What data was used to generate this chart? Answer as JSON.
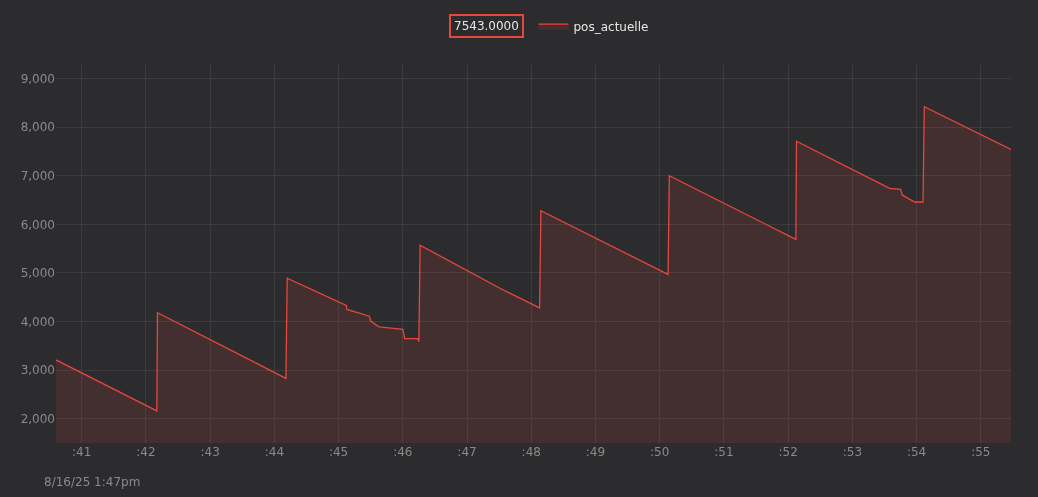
{
  "chart_data": {
    "type": "area",
    "x": [
      40.6,
      42.17,
      42.18,
      44.18,
      44.2,
      45.12,
      45.13,
      45.48,
      45.5,
      45.63,
      46.0,
      46.03,
      46.23,
      46.25,
      46.27,
      47.52,
      48.13,
      48.15,
      50.13,
      50.15,
      52.12,
      52.13,
      53.58,
      53.75,
      53.78,
      53.97,
      54.1,
      54.12,
      55.47
    ],
    "series": [
      {
        "name": "pos_actuelle",
        "color": "#e8453c",
        "values": [
          3210,
          2160,
          4180,
          2830,
          4890,
          4330,
          4250,
          4110,
          4010,
          3890,
          3840,
          3650,
          3650,
          3590,
          5570,
          4680,
          4280,
          6280,
          4970,
          7000,
          5690,
          7710,
          6740,
          6720,
          6600,
          6460,
          6460,
          8420,
          7543
        ]
      }
    ],
    "xlim": [
      40.6,
      55.47
    ],
    "xticks": [
      {
        "value": 41,
        "label": ":41"
      },
      {
        "value": 42,
        "label": ":42"
      },
      {
        "value": 43,
        "label": ":43"
      },
      {
        "value": 44,
        "label": ":44"
      },
      {
        "value": 45,
        "label": ":45"
      },
      {
        "value": 46,
        "label": ":46"
      },
      {
        "value": 47,
        "label": ":47"
      },
      {
        "value": 48,
        "label": ":48"
      },
      {
        "value": 49,
        "label": ":49"
      },
      {
        "value": 50,
        "label": ":50"
      },
      {
        "value": 51,
        "label": ":51"
      },
      {
        "value": 52,
        "label": ":52"
      },
      {
        "value": 53,
        "label": ":53"
      },
      {
        "value": 54,
        "label": ":54"
      },
      {
        "value": 55,
        "label": ":55"
      }
    ],
    "ylim": [
      1500,
      9300
    ],
    "yticks": [
      {
        "value": 2000,
        "label": "2,000"
      },
      {
        "value": 3000,
        "label": "3,000"
      },
      {
        "value": 4000,
        "label": "4,000"
      },
      {
        "value": 5000,
        "label": "5,000"
      },
      {
        "value": 6000,
        "label": "6,000"
      },
      {
        "value": 7000,
        "label": "7,000"
      },
      {
        "value": 8000,
        "label": "8,000"
      },
      {
        "value": 9000,
        "label": "9,000"
      }
    ],
    "grid": true,
    "legend": "top",
    "annotations": [
      "7543.0000",
      "8/16/25 1:47pm"
    ]
  }
}
